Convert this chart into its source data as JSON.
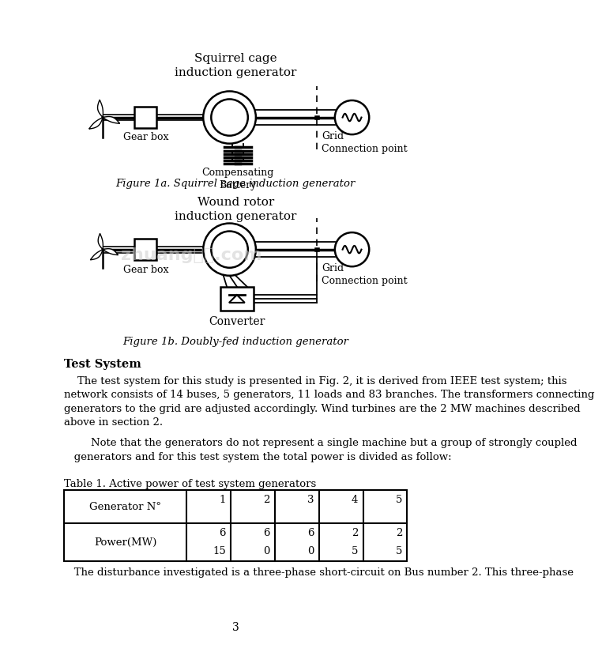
{
  "page_width": 7.44,
  "page_height": 10.52,
  "bg_color": "#ffffff",
  "fig1_title": "Squirrel cage\ninduction generator",
  "fig1_caption": "Figure 1a. Squirrel cage induction generator",
  "fig2_title": "Wound rotor\ninduction generator",
  "fig2_caption": "Figure 1b. Doubly-fed induction generator",
  "fig1_gear_label": "Gear box",
  "fig1_comp_label": "Compensating\nBattery",
  "fig1_grid_label": "Grid\nConnection point",
  "fig2_gear_label": "Gear box",
  "fig2_grid_label": "Grid\nConnection point",
  "fig2_conv_label": "Converter",
  "section_title": "Test System",
  "paragraph1_indent": "    The test system for this study is presented in Fig. 2, it is derived from IEEE test system; this",
  "paragraph1_line2": "network consists of 14 buses, 5 generators, 11 loads and 83 branches. The transformers connecting",
  "paragraph1_line3": "generators to the grid are adjusted accordingly. Wind turbines are the 2 MW machines described",
  "paragraph1_line4": "above in section 2.",
  "paragraph2_line1": "        Note that the generators do not represent a single machine but a group of strongly coupled",
  "paragraph2_line2": "   generators and for this test system the total power is divided as follow:",
  "table_title": "Table 1. Active power of test system generators",
  "table_row1_label": "Generator N°",
  "table_row2_label": "Power(MW)",
  "table_col_numbers": [
    "1",
    "2",
    "3",
    "4",
    "5"
  ],
  "table_row2_data_top": [
    "6",
    "6",
    "6",
    "2",
    "2"
  ],
  "table_row2_data_bot": [
    "15",
    "0",
    "0",
    "5",
    "5"
  ],
  "bottom_text": "   The disturbance investigated is a three-phase short-circuit on Bus number 2. This three-phase",
  "page_num": "3",
  "watermark": "zhuang大师.com",
  "lc": "#000000",
  "tc": "#000000"
}
